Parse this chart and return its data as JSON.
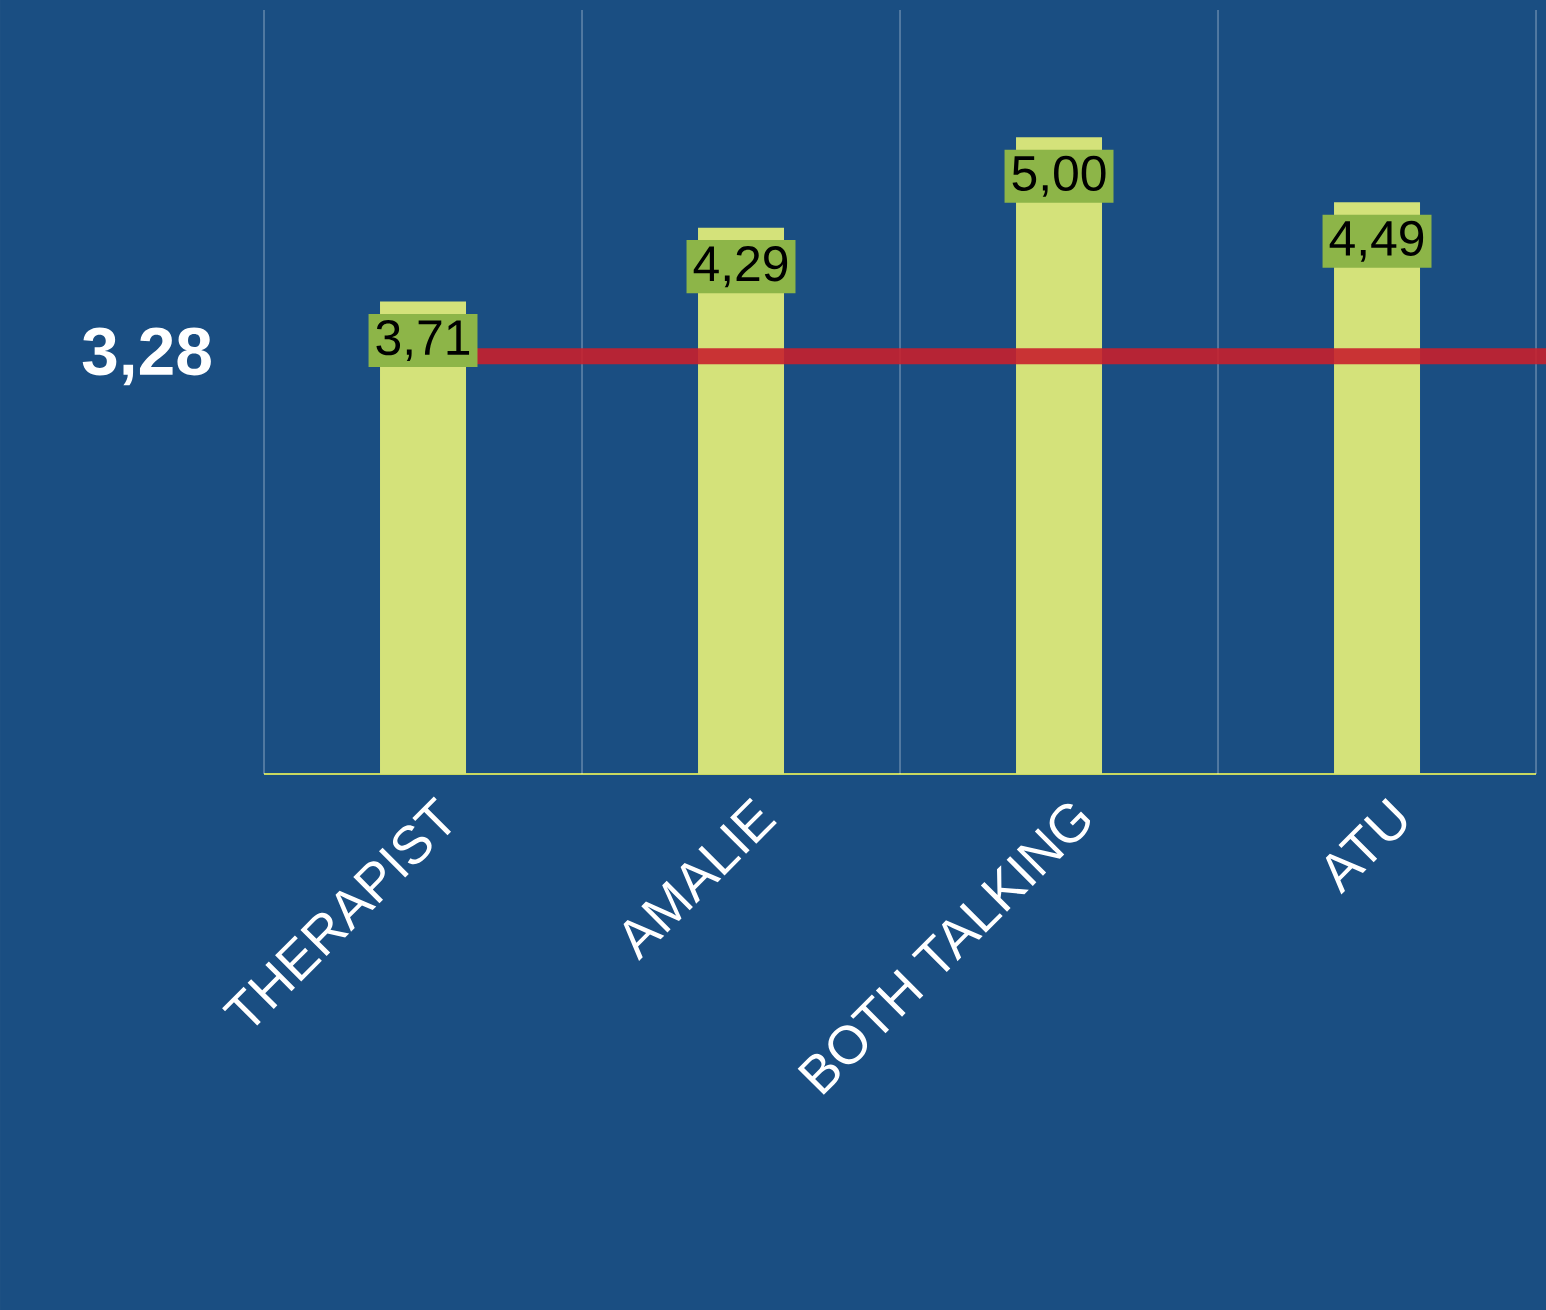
{
  "chart_data": {
    "type": "bar",
    "categories": [
      "THERAPIST",
      "AMALIE",
      "BOTH TALKING",
      "ATU"
    ],
    "values": [
      3.71,
      4.29,
      5.0,
      4.49
    ],
    "value_labels": [
      "3,71",
      "4,29",
      "5,00",
      "4,49"
    ],
    "color": "#d4e27a",
    "ylim": [
      0,
      6
    ],
    "grid": "x",
    "ref_lines": [
      {
        "axis": "y",
        "value": 3.28,
        "label": "3,28",
        "color": "#c8202c"
      }
    ]
  }
}
